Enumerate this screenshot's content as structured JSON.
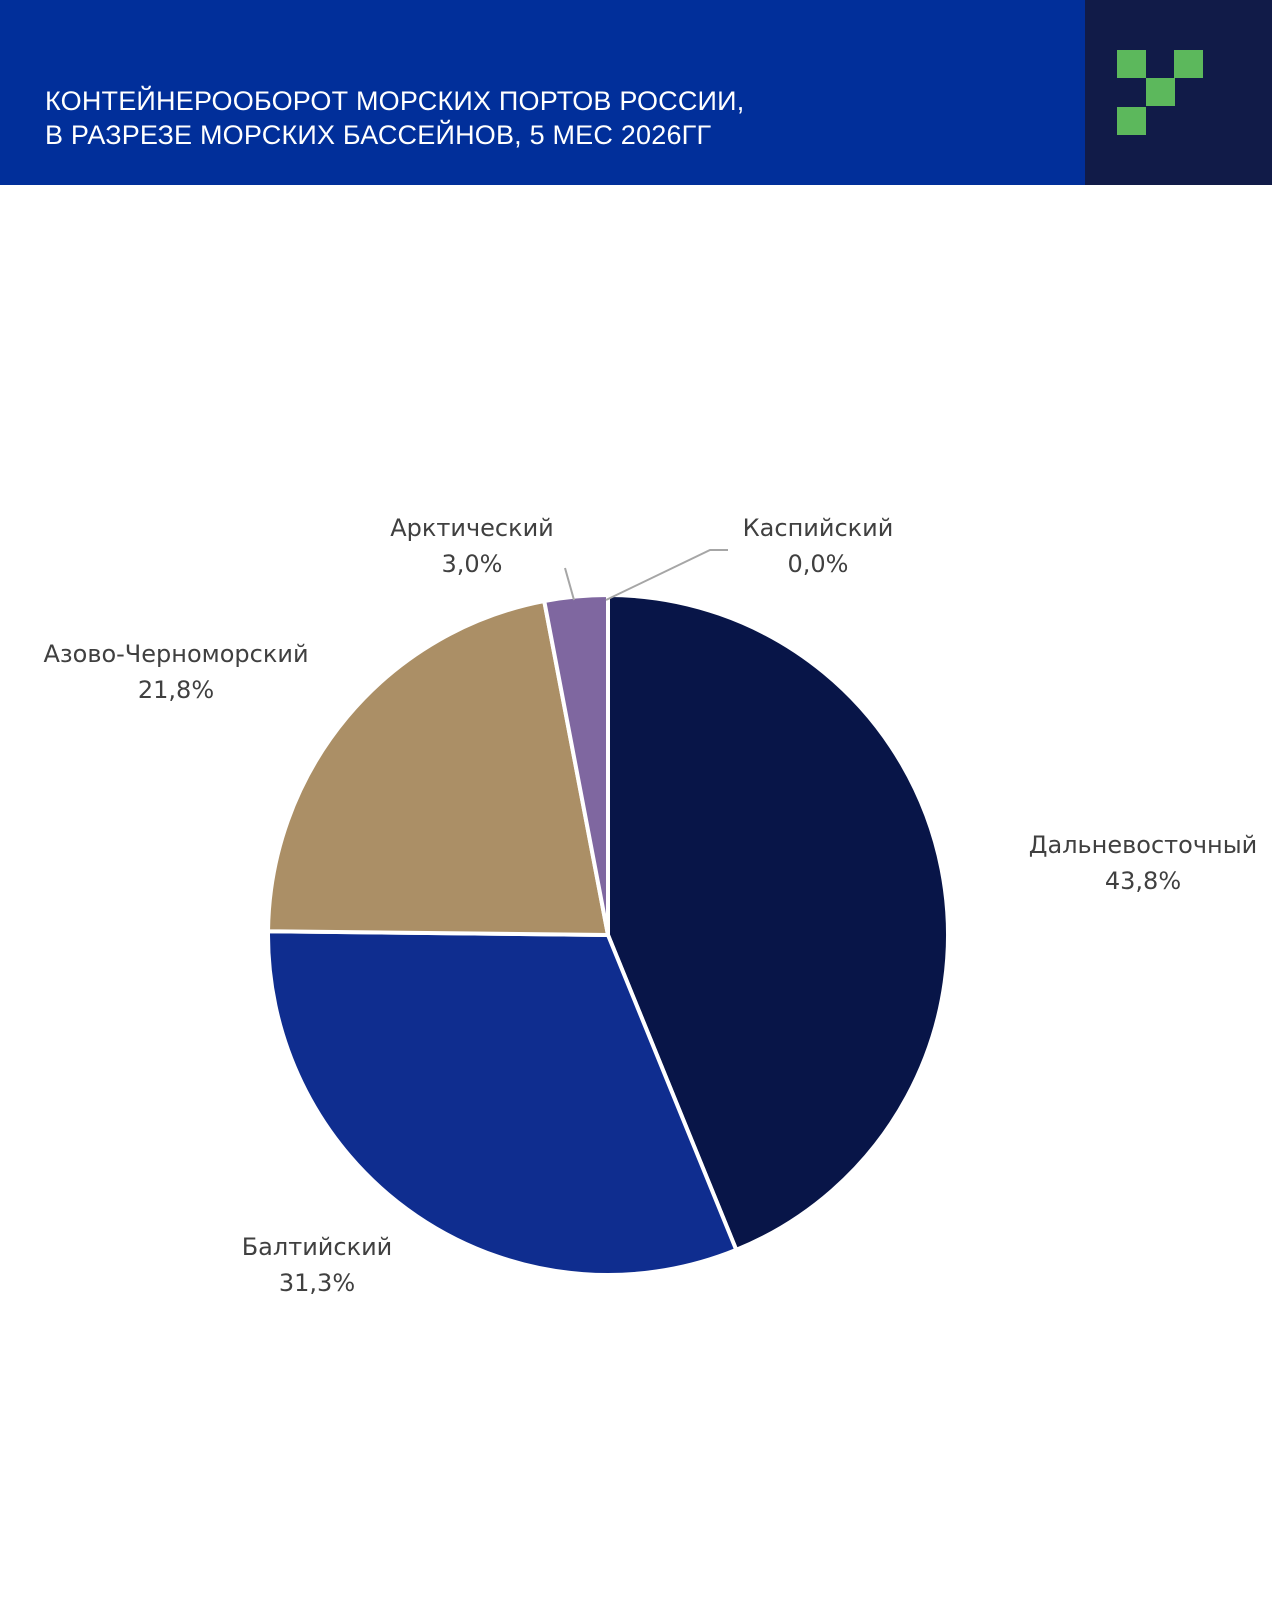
{
  "header": {
    "title_line1": "КОНТЕЙНЕРООБОРОТ МОРСКИХ ПОРТОВ РОССИИ,",
    "title_line2": "В РАЗРЕЗЕ МОРСКИХ БАССЕЙНОВ, 5 МЕС 2026ГГ",
    "background_color": "#012f9a",
    "logo_box_color": "#111b48",
    "logo_color": "#5cb85c",
    "logo_icon": "green-pixel-logo-icon"
  },
  "chart_data": {
    "type": "pie",
    "title": "",
    "start_angle_deg": 0,
    "direction": "clockwise",
    "slices": [
      {
        "name": "Дальневосточный",
        "value": 43.8,
        "label": "43,8%",
        "color": "#081548"
      },
      {
        "name": "Балтийский",
        "value": 31.3,
        "label": "31,3%",
        "color": "#0f2d8f"
      },
      {
        "name": "Азово-Черноморский",
        "value": 21.8,
        "label": "21,8%",
        "color": "#ab8f66"
      },
      {
        "name": "Арктический",
        "value": 3.0,
        "label": "3,0%",
        "color": "#7f67a0"
      },
      {
        "name": "Каспийский",
        "value": 0.0,
        "label": "0,0%",
        "color": "#9e9e9e"
      }
    ]
  }
}
